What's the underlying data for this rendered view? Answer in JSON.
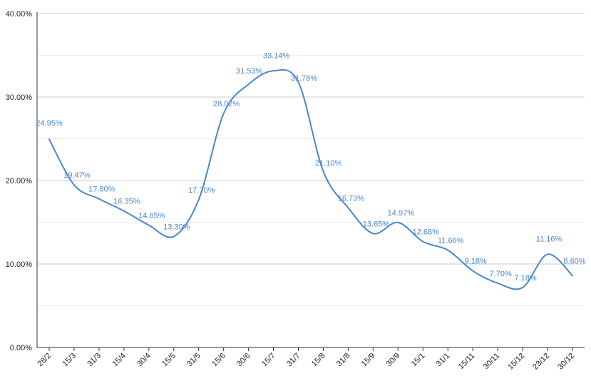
{
  "chart_data": {
    "type": "line",
    "title": "",
    "xlabel": "",
    "ylabel": "",
    "ylim": [
      0,
      40
    ],
    "y_ticks": [
      "0.00%",
      "10.00%",
      "20.00%",
      "30.00%",
      "40.00%"
    ],
    "grid": true,
    "categories": [
      "28/2",
      "15/3",
      "31/3",
      "15/4",
      "30/4",
      "15/5",
      "31/5",
      "15/6",
      "30/6",
      "15/7",
      "31/7",
      "15/8",
      "31/8",
      "15/9",
      "30/9",
      "15/1",
      "31/1",
      "15/11",
      "30/11",
      "15/12",
      "23/12",
      "30/12"
    ],
    "series": [
      {
        "values": [
          24.95,
          19.47,
          17.8,
          16.35,
          14.65,
          13.3,
          17.7,
          28.02,
          31.53,
          33.14,
          31.78,
          21.1,
          16.73,
          13.65,
          14.97,
          12.68,
          11.66,
          9.18,
          7.7,
          7.18,
          11.16,
          8.6
        ],
        "labels": [
          "24.95%",
          "19.47%",
          "17.80%",
          "16.35%",
          "14.65%",
          "13.30%",
          "17.70%",
          "28.02%",
          "31.53%",
          "33.14%",
          "31.78%",
          "21.10%",
          "16.73%",
          "13.65%",
          "14.97%",
          "12.68%",
          "11.66%",
          "9.18%",
          "7.70%",
          "7.18%",
          "11.16%",
          "8.60%"
        ],
        "color": "#4a86cf"
      }
    ]
  }
}
